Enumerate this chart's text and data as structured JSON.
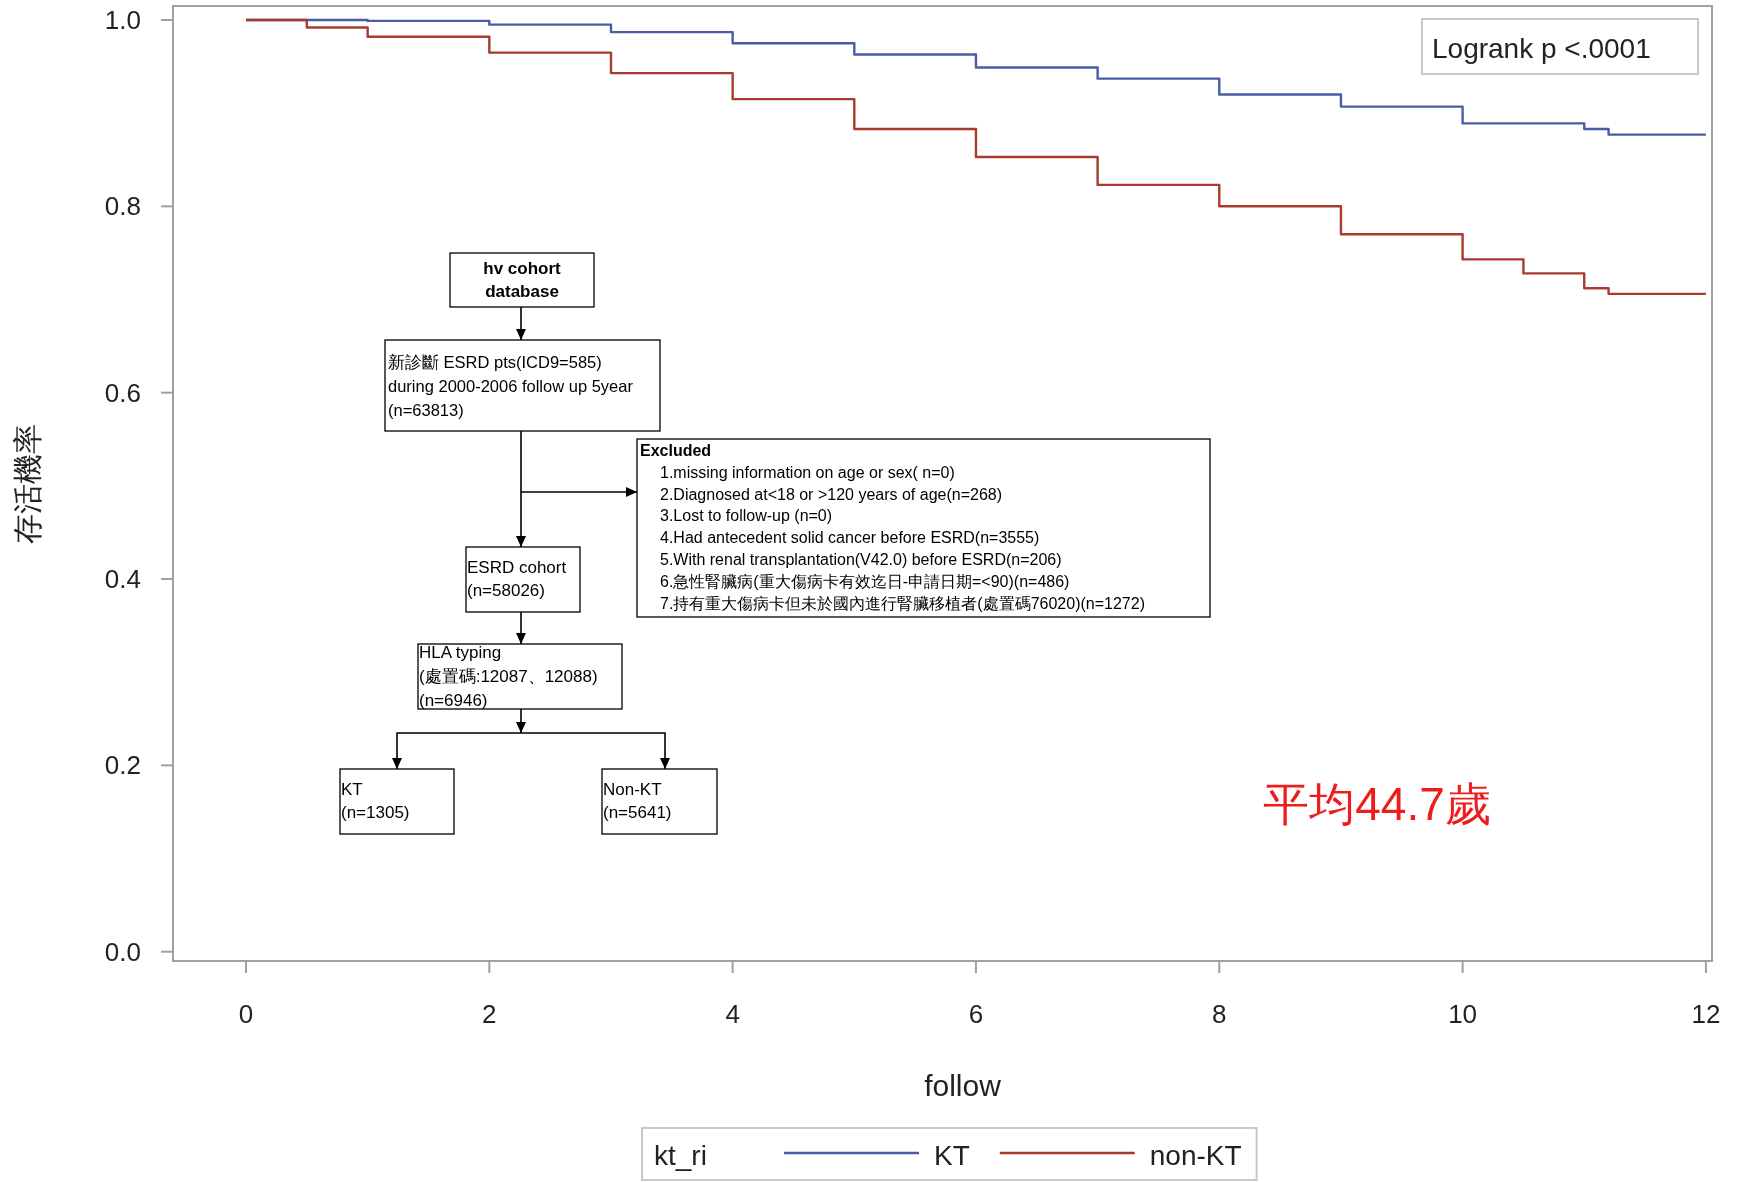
{
  "chart_data": {
    "type": "step",
    "xlabel": "follow",
    "ylabel": "存活機率",
    "legend_title": "kt_ri",
    "legend": "bottom",
    "grid": false,
    "xlim": [
      -0.6,
      12.05
    ],
    "ylim": [
      -0.01,
      1.015
    ],
    "xticks": [
      0,
      2,
      4,
      6,
      8,
      10,
      12
    ],
    "yticks": [
      {
        "value": 0,
        "label": "0.0"
      },
      {
        "value": 0.2,
        "label": "0.2"
      },
      {
        "value": 0.4,
        "label": "0.4"
      },
      {
        "value": 0.6,
        "label": "0.6"
      },
      {
        "value": 0.8,
        "label": "0.8"
      },
      {
        "value": 1,
        "label": "1.0"
      }
    ],
    "series": [
      {
        "name": "KT",
        "color": "#4a5ca6",
        "x": [
          0,
          1,
          2,
          3,
          4,
          5,
          6,
          7,
          8,
          9,
          10,
          11,
          11.2,
          12
        ],
        "values": [
          1.0,
          0.999,
          0.995,
          0.987,
          0.975,
          0.963,
          0.949,
          0.937,
          0.92,
          0.907,
          0.889,
          0.883,
          0.877,
          0.877
        ]
      },
      {
        "name": "non-KT",
        "color": "#a83a2e",
        "x": [
          0,
          0.5,
          1,
          2,
          3,
          4,
          5,
          6,
          7,
          8,
          9,
          10,
          10.5,
          11,
          11.2,
          12
        ],
        "values": [
          1.0,
          0.992,
          0.982,
          0.965,
          0.943,
          0.915,
          0.883,
          0.853,
          0.823,
          0.8,
          0.77,
          0.743,
          0.728,
          0.712,
          0.706,
          0.706
        ]
      }
    ],
    "annotations": [
      "Logrank p <.0001",
      "平均44.7歲",
      "hv cohort\ndatabase",
      "新診斷 ESRD pts(ICD9=585)\nduring 2000-2006 follow up 5year\n(n=63813)",
      "Excluded\n1.missing information on age or sex( n=0)\n2.Diagnosed at<18  or >120 years of age(n=268)\n3.Lost to follow-up (n=0)\n4.Had antecedent solid cancer before ESRD(n=3555)\n5.With renal transplantation(V42.0) before ESRD(n=206)\n6.急性腎臟病(重大傷病卡有效迄日-申請日期=<90)(n=486)\n7.持有重大傷病卡但未於國內進行腎臟移植者(處置碼76020)(n=1272)",
      "ESRD cohort\n(n=58026)",
      "HLA typing\n(處置碼:12087、12088)\n(n=6946)",
      "KT\n(n=1305)",
      "Non-KT\n(n=5641)"
    ]
  }
}
